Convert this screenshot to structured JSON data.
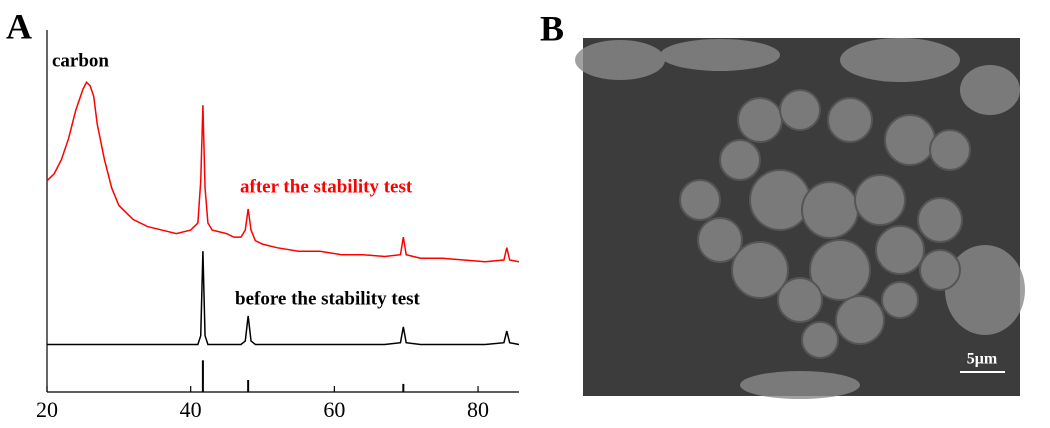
{
  "panel_a_label": "A",
  "chart_data": {
    "type": "line",
    "annotation": "carbon",
    "x": [
      20,
      21,
      22,
      23,
      24,
      25,
      25.5,
      26,
      26.5,
      27,
      28,
      29,
      30,
      32,
      34,
      36,
      38,
      40,
      41,
      41.4,
      41.7,
      42,
      42.4,
      43,
      45,
      46,
      47,
      47.6,
      48,
      48.4,
      49,
      50,
      52,
      55,
      58,
      61,
      64,
      67,
      69.2,
      69.6,
      70,
      72,
      75,
      78,
      81,
      83.6,
      84,
      84.4,
      85.7
    ],
    "series": [
      {
        "name": "after the stability test",
        "color": "#ff0000",
        "values": [
          60,
          62,
          66,
          72,
          80,
          86,
          88,
          87,
          84,
          76,
          66,
          58,
          53,
          49,
          47,
          46,
          45,
          46,
          48,
          60,
          81.5,
          58,
          48,
          46,
          45,
          44,
          44,
          46,
          52,
          46,
          43,
          42,
          41,
          40,
          40,
          39,
          39,
          38.5,
          39,
          44,
          39,
          38,
          38,
          37.5,
          37,
          37.5,
          41,
          37.5,
          37
        ]
      },
      {
        "name": "before the stability test",
        "color": "#000000",
        "values": [
          13.5,
          13.5,
          13.5,
          13.5,
          13.5,
          13.5,
          13.5,
          13.5,
          13.5,
          13.5,
          13.5,
          13.5,
          13.5,
          13.5,
          13.5,
          13.5,
          13.5,
          13.5,
          13.5,
          16,
          40,
          16,
          13.5,
          13.5,
          13.5,
          13.5,
          13.5,
          14.5,
          21.6,
          14.5,
          13.5,
          13.5,
          13.5,
          13.5,
          13.5,
          13.5,
          13.5,
          13.5,
          14,
          18.5,
          14,
          13.5,
          13.5,
          13.5,
          13.5,
          14,
          17.3,
          14,
          13.5
        ]
      }
    ],
    "reference": {
      "x": [
        41.7,
        48,
        69.6
      ],
      "values": [
        9,
        3.4,
        2.3
      ],
      "color": "#000000"
    },
    "xlim": [
      20,
      85.7
    ],
    "ylim": [
      0,
      100
    ],
    "xticks": [
      20,
      40,
      60,
      80
    ]
  },
  "panel_b": {
    "label": "B",
    "scale_bar": "5μm"
  }
}
